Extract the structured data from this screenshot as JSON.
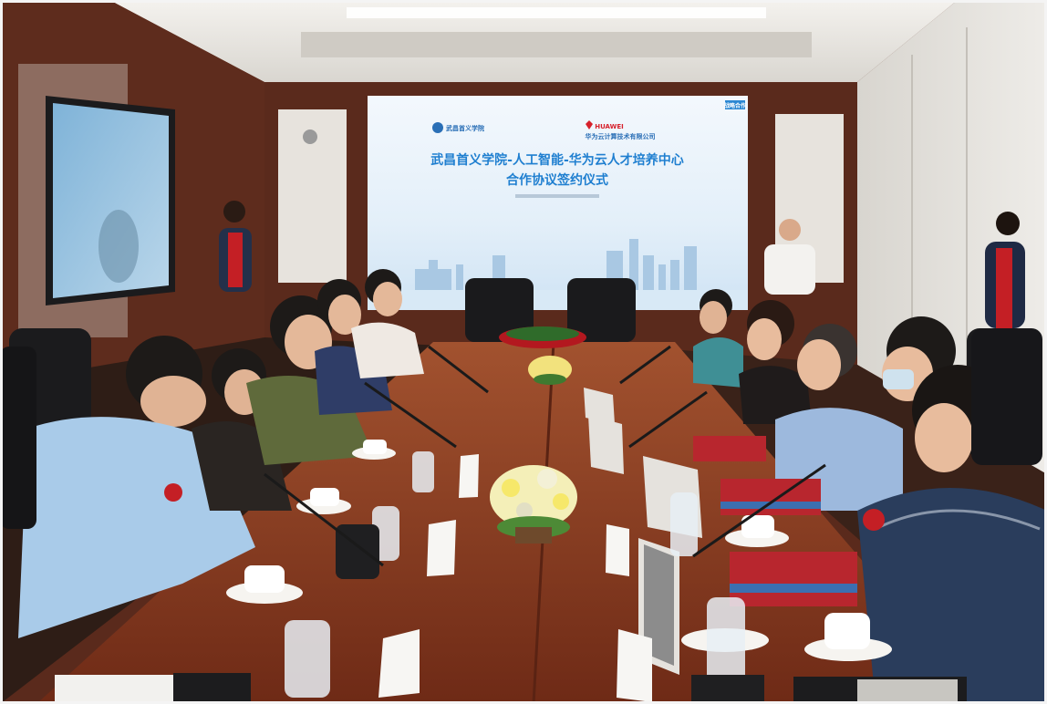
{
  "screen": {
    "logo_left_text": "武昌首义学院",
    "logo_right_brand": "HUAWEI",
    "logo_right_text": "华为云计算技术有限公司",
    "title_line1": "武昌首义学院-人工智能-华为云人才培养中心",
    "title_line2": "合作协议签约仪式",
    "corner_badge": "战略合作"
  },
  "colors": {
    "table": "#8a3a22",
    "wall_panel": "#5a2a1c",
    "screen_bg": "#e9f3fb",
    "screen_title": "#1f7fd0",
    "ceiling": "#e8e6e1",
    "floor_edge": "#3a1a10"
  },
  "icons": {
    "huawei_logo": "huawei-logo-icon",
    "school_logo": "school-seal-icon",
    "flowers": "flower-arrangement-icon"
  }
}
